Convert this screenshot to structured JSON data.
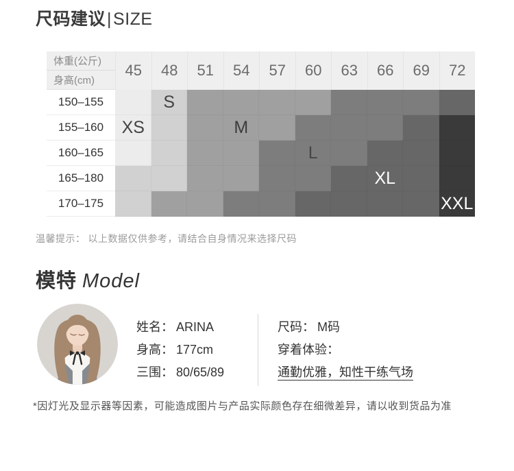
{
  "size_section": {
    "title_cn": "尺码建议",
    "title_divider": "|",
    "title_en": "SIZE",
    "table": {
      "corner_top": "体重(公斤)",
      "corner_bottom": "身高(cm)",
      "columns": [
        "45",
        "48",
        "51",
        "54",
        "57",
        "60",
        "63",
        "66",
        "69",
        "72"
      ],
      "rows": [
        {
          "height": "150–155",
          "sizes": [
            "XS",
            "S",
            "M",
            "M",
            "M",
            "M",
            "L",
            "L",
            "L",
            "XL"
          ]
        },
        {
          "height": "155–160",
          "sizes": [
            "XS",
            "S",
            "M",
            "M",
            "M",
            "L",
            "L",
            "L",
            "XL",
            "XXL"
          ]
        },
        {
          "height": "160–165",
          "sizes": [
            "XS",
            "S",
            "M",
            "M",
            "L",
            "L",
            "L",
            "XL",
            "XL",
            "XXL"
          ]
        },
        {
          "height": "165–180",
          "sizes": [
            "S",
            "S",
            "M",
            "M",
            "L",
            "L",
            "XL",
            "XL",
            "XL",
            "XXL"
          ]
        },
        {
          "height": "170–175",
          "sizes": [
            "S",
            "M",
            "M",
            "L",
            "L",
            "XL",
            "XL",
            "XL",
            "XL",
            "XXL"
          ]
        }
      ],
      "visible_labels": [
        {
          "row": 0,
          "col": 1,
          "text": "S"
        },
        {
          "row": 1,
          "col": 0,
          "text": "XS"
        },
        {
          "row": 1,
          "col": 3,
          "text": "M"
        },
        {
          "row": 2,
          "col": 5,
          "text": "L"
        },
        {
          "row": 3,
          "col": 7,
          "text": "XL"
        },
        {
          "row": 4,
          "col": 9,
          "text": "XXL"
        }
      ],
      "size_colors": {
        "XS": "#ececec",
        "S": "#d1d1d1",
        "M": "#a0a0a0",
        "L": "#7d7d7d",
        "XL": "#676767",
        "XXL": "#3a3a3a"
      },
      "label_text_colors": {
        "XS": "#434343",
        "S": "#434343",
        "M": "#3d3d3d",
        "L": "#474747",
        "XL": "#ffffff",
        "XXL": "#ffffff"
      }
    },
    "note_label": "温馨提示：",
    "note_text": "以上数据仅供参考，请结合自身情况来选择尺码"
  },
  "model_section": {
    "title_cn": "模特",
    "title_en": "Model",
    "info_left": [
      {
        "label": "姓名：",
        "value": "ARINA"
      },
      {
        "label": "身高：",
        "value": "177cm"
      },
      {
        "label": "三围：",
        "value": "80/65/89"
      }
    ],
    "info_right": {
      "size_label": "尺码：",
      "size_value": "M码",
      "experience_label": "穿着体验：",
      "experience_value": "通勤优雅，知性干练气场"
    }
  },
  "footer_note": "*因灯光及显示器等因素，可能造成图片与产品实际颜色存在细微差异，请以收到货品为准",
  "chart_data": {
    "type": "heatmap",
    "title": "尺码建议|SIZE",
    "xlabel": "体重(公斤)",
    "ylabel": "身高(cm)",
    "x": [
      45,
      48,
      51,
      54,
      57,
      60,
      63,
      66,
      69,
      72
    ],
    "y": [
      "150–155",
      "155–160",
      "160–165",
      "165–180",
      "170–175"
    ],
    "grid": [
      [
        "XS",
        "S",
        "M",
        "M",
        "M",
        "M",
        "L",
        "L",
        "L",
        "XL"
      ],
      [
        "XS",
        "S",
        "M",
        "M",
        "M",
        "L",
        "L",
        "L",
        "XL",
        "XXL"
      ],
      [
        "XS",
        "S",
        "M",
        "M",
        "L",
        "L",
        "L",
        "XL",
        "XL",
        "XXL"
      ],
      [
        "S",
        "S",
        "M",
        "M",
        "L",
        "L",
        "XL",
        "XL",
        "XL",
        "XXL"
      ],
      [
        "S",
        "M",
        "M",
        "L",
        "L",
        "XL",
        "XL",
        "XL",
        "XL",
        "XXL"
      ]
    ],
    "legend": [
      "XS",
      "S",
      "M",
      "L",
      "XL",
      "XXL"
    ],
    "value_colors": [
      "#ececec",
      "#d1d1d1",
      "#a0a0a0",
      "#7d7d7d",
      "#676767",
      "#3a3a3a"
    ]
  }
}
